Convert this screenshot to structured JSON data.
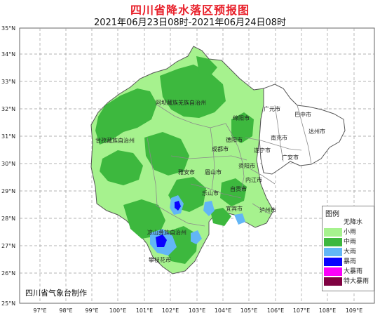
{
  "header": {
    "title": "四川省降水落区预报图",
    "subtitle": "2021年06月23日08时-2021年06月24日08时"
  },
  "axes": {
    "lat_labels": [
      "35°N",
      "34°N",
      "33°N",
      "32°N",
      "31°N",
      "30°N",
      "29°N",
      "28°N",
      "27°N",
      "26°N",
      "25°N"
    ],
    "lon_labels": [
      "97°E",
      "98°E",
      "99°E",
      "100°E",
      "101°E",
      "102°E",
      "103°E",
      "104°E",
      "105°E",
      "106°E",
      "107°E",
      "108°E",
      "109°E"
    ]
  },
  "cities": [
    {
      "name": "阿坝藏族羌族自治州"
    },
    {
      "name": "甘孜藏族自治州"
    },
    {
      "name": "绵阳市"
    },
    {
      "name": "广元市"
    },
    {
      "name": "巴中市"
    },
    {
      "name": "达州市"
    },
    {
      "name": "南充市"
    },
    {
      "name": "德阳市"
    },
    {
      "name": "成都市"
    },
    {
      "name": "遂宁市"
    },
    {
      "name": "广安市"
    },
    {
      "name": "雅安市"
    },
    {
      "name": "眉山市"
    },
    {
      "name": "资阳市"
    },
    {
      "name": "乐山市"
    },
    {
      "name": "内江市"
    },
    {
      "name": "自贡市"
    },
    {
      "name": "宜宾市"
    },
    {
      "name": "泸州市"
    },
    {
      "name": "凉山彝族自治州"
    },
    {
      "name": "攀枝花市"
    }
  ],
  "legend": {
    "title": "图例",
    "items": [
      {
        "label": "无降水",
        "color": "#ffffff"
      },
      {
        "label": "小雨",
        "color": "#a6f28e"
      },
      {
        "label": "中雨",
        "color": "#3db83e"
      },
      {
        "label": "大雨",
        "color": "#62b6f6"
      },
      {
        "label": "暴雨",
        "color": "#0a01fe"
      },
      {
        "label": "大暴雨",
        "color": "#fa01f9"
      },
      {
        "label": "特大暴雨",
        "color": "#7f0141"
      }
    ]
  },
  "footer": {
    "producer": "四川省气象台制作"
  }
}
